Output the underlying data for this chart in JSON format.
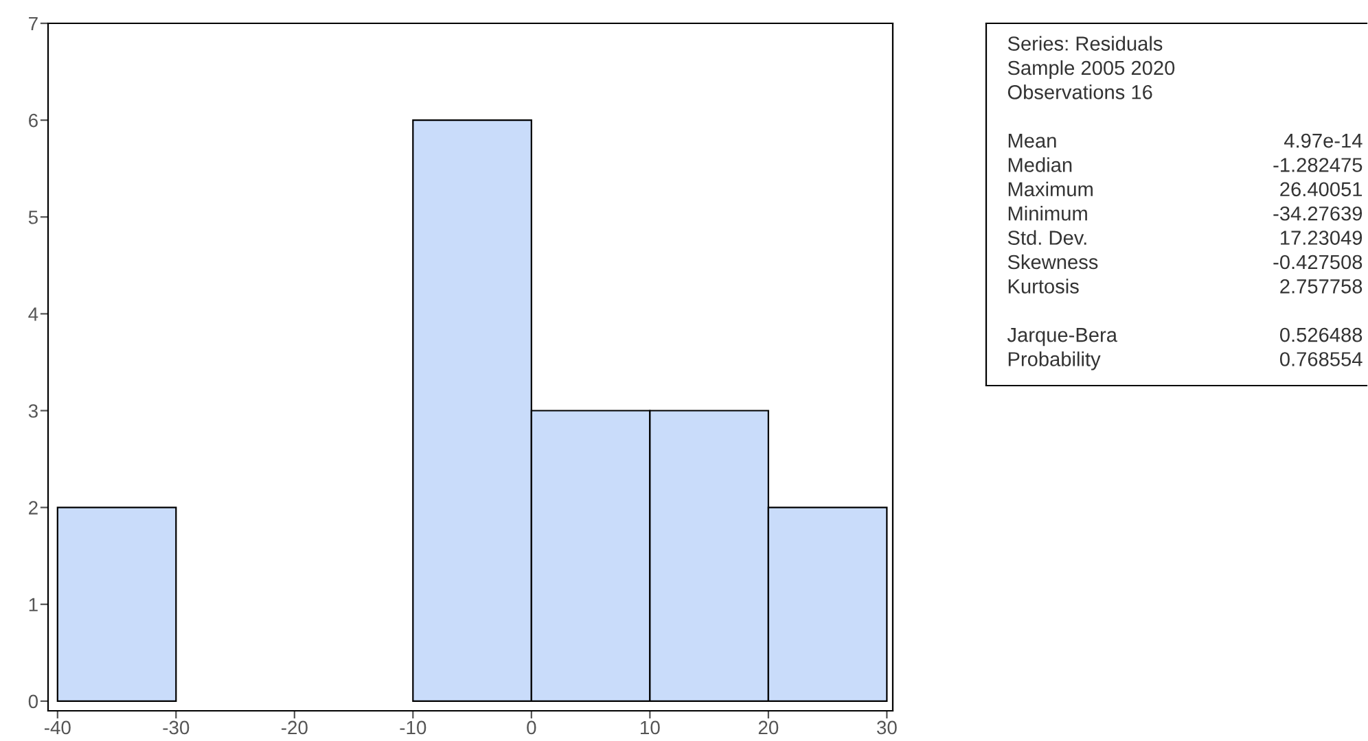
{
  "chart_data": [
    {
      "type": "histogram",
      "bins": [
        -40,
        -30,
        -20,
        -10,
        0,
        10,
        20,
        30
      ],
      "values": [
        2,
        0,
        0,
        6,
        3,
        3,
        2
      ],
      "color": "#c9dcfa",
      "xlim": [
        -40.8,
        30.5
      ],
      "ylim": [
        -0.1,
        7
      ],
      "xticks": [
        -40,
        -30,
        -20,
        -10,
        0,
        10,
        20,
        30
      ],
      "yticks": [
        0,
        1,
        2,
        3,
        4,
        5,
        6,
        7
      ],
      "grid": false
    },
    {
      "type": "other",
      "annotations": [
        "Series: Residuals\nSample 2005 2020\nObservations 16",
        "Mean\t4.97e-14\nMedian\t-1.282475\nMaximum\t26.40051\nMinimum\t-34.27639\nStd. Dev.\t17.23049\nSkewness\t-0.427508\nKurtosis\t2.757758",
        "Jarque-Bera\t0.526488\nProbability\t0.768554"
      ]
    }
  ]
}
